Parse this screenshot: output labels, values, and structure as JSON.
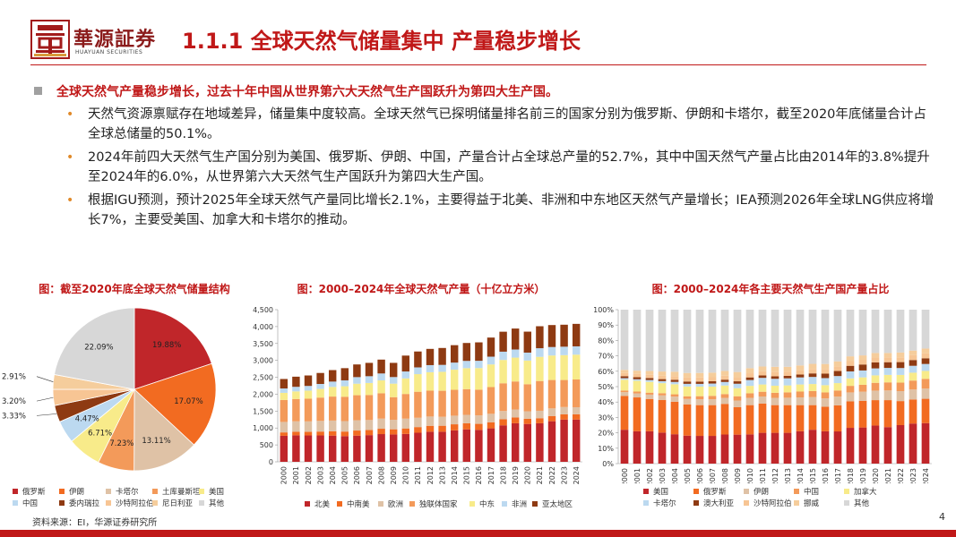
{
  "header": {
    "logo_cn": "華源証券",
    "logo_en": "HUAYUAN SECURITIES",
    "title": "1.1.1 全球天然气储量集中 产量稳步增长"
  },
  "lead": "全球天然气产量稳步增长，过去十年中国从世界第六大天然气生产国跃升为第四大生产国。",
  "bullets": [
    "天然气资源禀赋存在地域差异，储量集中度较高。全球天然气已探明储量排名前三的国家分别为俄罗斯、伊朗和卡塔尔，截至2020年底储量合计占全球总储量的50.1%。",
    "2024年前四大天然气生产国分别为美国、俄罗斯、伊朗、中国，产量合计占全球总产量的52.7%，其中中国天然气产量占比由2014年的3.8%提升至2024年的6.0%，从世界第六大天然气生产国跃升为第四大生产国。",
    "根据IGU预测，预计2025年全球天然气产量同比增长2.1%，主要得益于北美、非洲和中东地区天然气产量增长；IEA预测2026年全球LNG供应将增长7%，主要受美国、加拿大和卡塔尔的推动。"
  ],
  "source": "资料来源：EI，华源证券研究所",
  "page_number": "4",
  "chart_data": [
    {
      "type": "pie",
      "title": "图：截至2020年底全球天然气储量结构",
      "categories": [
        "俄罗斯",
        "伊朗",
        "卡塔尔",
        "土库曼斯坦",
        "美国",
        "中国",
        "委内瑞拉",
        "沙特阿拉伯",
        "尼日利亚",
        "其他"
      ],
      "values": [
        19.88,
        17.07,
        13.11,
        7.23,
        6.71,
        4.47,
        3.33,
        3.2,
        2.91,
        22.09
      ],
      "labels": [
        "19.88%",
        "17.07%",
        "13.11%",
        "7.23%",
        "6.71%",
        "4.47%",
        "3.33%",
        "3.20%",
        "2.91%",
        "22.09%"
      ],
      "colors": [
        "#c0262a",
        "#f26b21",
        "#dfc2a6",
        "#f39a5a",
        "#f8eb8a",
        "#bcd9f0",
        "#8e3a12",
        "#f7c594",
        "#f5cd9c",
        "#d7d7d7"
      ]
    },
    {
      "type": "bar",
      "stacked": true,
      "title": "图：2000–2024年全球天然气产量（十亿立方米）",
      "categories": [
        "2000",
        "2001",
        "2002",
        "2003",
        "2004",
        "2005",
        "2006",
        "2007",
        "2008",
        "2009",
        "2010",
        "2011",
        "2012",
        "2013",
        "2014",
        "2015",
        "2016",
        "2017",
        "2018",
        "2019",
        "2020",
        "2021",
        "2022",
        "2023",
        "2024"
      ],
      "ylim": [
        0,
        4500
      ],
      "yticks": [
        "0",
        "500",
        "1,000",
        "1,500",
        "2,000",
        "2,500",
        "3,000",
        "3,500",
        "4,000",
        "4,500"
      ],
      "series": [
        {
          "name": "北美",
          "color": "#c0262a",
          "values": [
            770,
            785,
            780,
            780,
            775,
            760,
            775,
            790,
            820,
            810,
            825,
            860,
            890,
            890,
            930,
            960,
            945,
            990,
            1080,
            1140,
            1120,
            1140,
            1200,
            1250,
            1250
          ]
        },
        {
          "name": "中南美",
          "color": "#f26b21",
          "values": [
            100,
            103,
            106,
            115,
            130,
            135,
            150,
            152,
            158,
            152,
            162,
            168,
            175,
            177,
            180,
            180,
            178,
            180,
            178,
            172,
            155,
            150,
            155,
            155,
            155
          ]
        },
        {
          "name": "欧洲",
          "color": "#dfc2a6",
          "values": [
            310,
            310,
            310,
            315,
            315,
            310,
            305,
            295,
            300,
            280,
            290,
            275,
            275,
            265,
            255,
            250,
            250,
            250,
            245,
            235,
            220,
            220,
            225,
            215,
            210
          ]
        },
        {
          "name": "独联体国家",
          "color": "#f39a5a",
          "values": [
            650,
            660,
            670,
            690,
            710,
            720,
            740,
            740,
            750,
            670,
            730,
            770,
            765,
            770,
            765,
            760,
            760,
            790,
            820,
            830,
            800,
            880,
            840,
            800,
            820
          ]
        },
        {
          "name": "中东",
          "color": "#f8eb8a",
          "values": [
            210,
            225,
            240,
            255,
            285,
            310,
            340,
            355,
            380,
            400,
            460,
            520,
            545,
            560,
            595,
            620,
            640,
            670,
            690,
            705,
            700,
            715,
            725,
            735,
            735
          ]
        },
        {
          "name": "非洲",
          "color": "#bcd9f0",
          "values": [
            130,
            135,
            138,
            148,
            158,
            175,
            195,
            200,
            205,
            195,
            205,
            200,
            210,
            205,
            210,
            215,
            215,
            230,
            245,
            240,
            235,
            255,
            250,
            250,
            245
          ]
        },
        {
          "name": "亚太地区",
          "color": "#8e3a12",
          "values": [
            280,
            300,
            310,
            325,
            340,
            360,
            375,
            395,
            410,
            420,
            470,
            470,
            480,
            500,
            515,
            530,
            545,
            565,
            590,
            620,
            620,
            650,
            650,
            650,
            665
          ]
        }
      ]
    },
    {
      "type": "bar",
      "stacked": true,
      "percent": true,
      "title": "图：2000–2024年各主要天然气生产国产量占比",
      "categories": [
        "2000",
        "2001",
        "2002",
        "2003",
        "2004",
        "2005",
        "2006",
        "2007",
        "2008",
        "2009",
        "2010",
        "2011",
        "2012",
        "2013",
        "2014",
        "2015",
        "2016",
        "2017",
        "2018",
        "2019",
        "2020",
        "2021",
        "2022",
        "2023",
        "2024"
      ],
      "ylim": [
        0,
        100
      ],
      "yticks": [
        "0%",
        "10%",
        "20%",
        "30%",
        "40%",
        "50%",
        "60%",
        "70%",
        "80%",
        "90%",
        "100%"
      ],
      "series": [
        {
          "name": "美国",
          "color": "#c0262a",
          "values": [
            22,
            21,
            21,
            20,
            19,
            18,
            18,
            18,
            19,
            19,
            19,
            20,
            20,
            20,
            21,
            22,
            21,
            21,
            23,
            23,
            24,
            23,
            24,
            25,
            25
          ]
        },
        {
          "name": "俄罗斯",
          "color": "#f26b21",
          "values": [
            22,
            22,
            21,
            21,
            21,
            20,
            20,
            20,
            20,
            18,
            19,
            19,
            18,
            18,
            17,
            16,
            16,
            17,
            17,
            17,
            16,
            17,
            15,
            15,
            15
          ]
        },
        {
          "name": "伊朗",
          "color": "#dfc2a6",
          "values": [
            2.4,
            2.6,
            2.8,
            3,
            3.3,
            3.6,
            3.8,
            3.8,
            3.9,
            4.4,
            4.7,
            4.6,
            4.7,
            4.8,
            5,
            5.2,
            5.4,
            5.7,
            5.8,
            5.8,
            6,
            6.1,
            6.2,
            6.2,
            6.3
          ]
        },
        {
          "name": "中国",
          "color": "#f39a5a",
          "values": [
            1.1,
            1.2,
            1.3,
            1.4,
            1.5,
            1.7,
            2,
            2.2,
            2.5,
            2.8,
            3,
            3.1,
            3.3,
            3.5,
            3.8,
            3.9,
            3.9,
            4,
            4.2,
            4.4,
            4.9,
            5.1,
            5.3,
            5.6,
            6
          ]
        },
        {
          "name": "加拿大",
          "color": "#f8eb8a",
          "values": [
            7,
            7,
            7,
            6.5,
            6.5,
            6.3,
            6.2,
            6,
            5.6,
            5.3,
            4.8,
            4.7,
            4.6,
            4.5,
            4.6,
            4.6,
            4.7,
            4.8,
            4.8,
            4.7,
            4.7,
            4.7,
            4.8,
            4.9,
            4.9
          ]
        },
        {
          "name": "卡塔尔",
          "color": "#bcd9f0",
          "values": [
            1,
            1,
            1.2,
            1.3,
            1.5,
            1.7,
            1.8,
            2,
            2.3,
            2.9,
            3.8,
            4.3,
            4.5,
            4.6,
            4.6,
            4.6,
            4.6,
            4.6,
            4.5,
            4.4,
            4.4,
            4.4,
            4.3,
            4.3,
            4.3
          ]
        },
        {
          "name": "澳大利亚",
          "color": "#8e3a12",
          "values": [
            1.3,
            1.3,
            1.3,
            1.3,
            1.4,
            1.5,
            1.5,
            1.5,
            1.5,
            1.6,
            1.7,
            1.6,
            1.6,
            1.6,
            1.9,
            2.3,
            2.9,
            3.3,
            3.6,
            3.8,
            3.8,
            3.6,
            3.7,
            3.6,
            3.5
          ]
        },
        {
          "name": "沙特阿拉伯",
          "color": "#f7c594",
          "values": [
            2.1,
            2.1,
            2.1,
            2.2,
            2.4,
            2.5,
            2.6,
            2.6,
            2.6,
            2.7,
            2.7,
            2.7,
            2.8,
            2.8,
            2.8,
            2.9,
            3,
            3,
            3,
            3,
            3,
            3,
            3,
            3,
            3
          ]
        },
        {
          "name": "挪威",
          "color": "#f5cd9c",
          "values": [
            2,
            2.2,
            2.5,
            2.7,
            2.8,
            3,
            3,
            3,
            3.1,
            3.4,
            3.3,
            3.1,
            3.4,
            3.1,
            3.1,
            3.3,
            3.3,
            3.3,
            3.1,
            2.8,
            2.9,
            2.8,
            3,
            2.9,
            3
          ]
        },
        {
          "name": "其他",
          "color": "#d7d7d7",
          "values": [
            39.1,
            39.6,
            39.8,
            39.9,
            40.1,
            40.7,
            41.1,
            40.9,
            40,
            40.9,
            38,
            36.9,
            37.1,
            37.1,
            36.2,
            35.2,
            35.3,
            33.7,
            30,
            29.1,
            27.3,
            27.3,
            26.7,
            25.5,
            24
          ]
        }
      ]
    }
  ]
}
